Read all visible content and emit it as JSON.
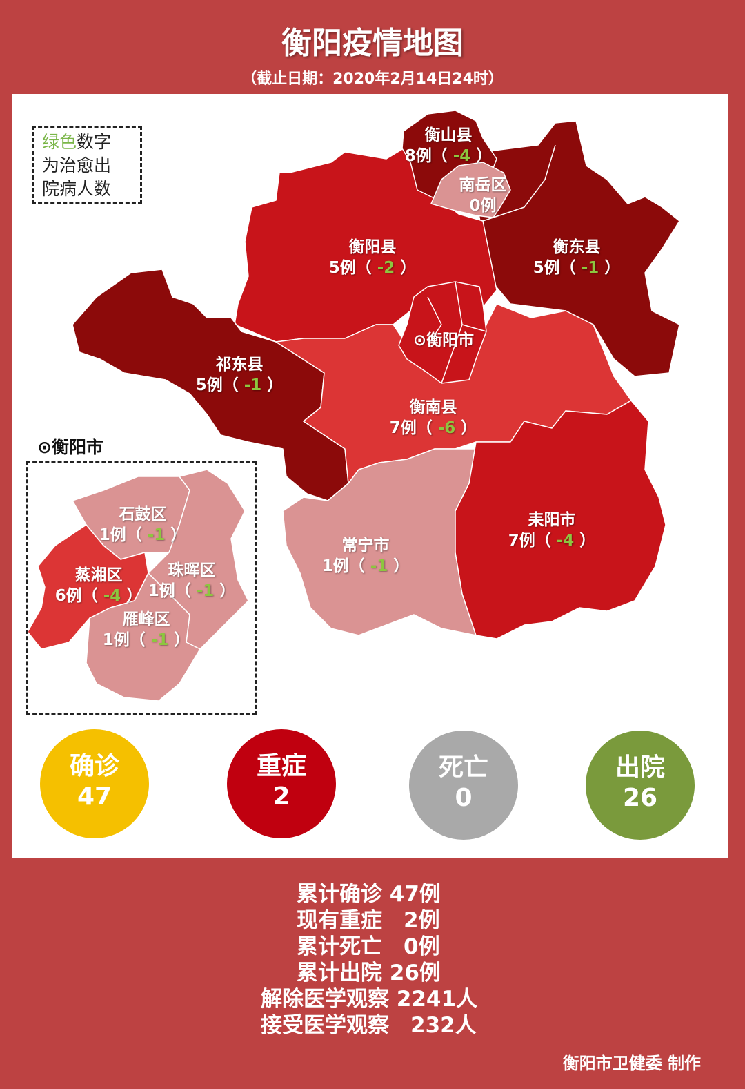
{
  "header": {
    "title": "衡阳疫情地图",
    "subtitle": "（截止日期：2020年2月14日24时）"
  },
  "legend": {
    "green_word": "绿色",
    "line1_rest": "数字",
    "line2": "为治愈出",
    "line3": "院病人数"
  },
  "labels": {
    "paren_open": "（ ",
    "paren_close": " ）",
    "city_marker": "⊙"
  },
  "colors": {
    "background": "#bd4242",
    "dark": "#8c0a0a",
    "red": "#c8141a",
    "medium": "#dc3535",
    "light": "#da9393",
    "recovered_text": "#8dc63f"
  },
  "regions": [
    {
      "name": "衡山县",
      "cases": "8例",
      "recovered": "-4"
    },
    {
      "name": "南岳区",
      "cases": "0例",
      "recovered": ""
    },
    {
      "name": "衡阳县",
      "cases": "5例",
      "recovered": "-2"
    },
    {
      "name": "衡东县",
      "cases": "5例",
      "recovered": "-1"
    },
    {
      "name": "衡阳市",
      "cases": "",
      "recovered": ""
    },
    {
      "name": "祁东县",
      "cases": "5例",
      "recovered": "-1"
    },
    {
      "name": "衡南县",
      "cases": "7例",
      "recovered": "-6"
    },
    {
      "name": "常宁市",
      "cases": "1例",
      "recovered": "-1"
    },
    {
      "name": "耒阳市",
      "cases": "7例",
      "recovered": "-4"
    }
  ],
  "inset": {
    "title": "衡阳市",
    "districts": [
      {
        "name": "石鼓区",
        "cases": "1例",
        "recovered": "-1"
      },
      {
        "name": "蒸湘区",
        "cases": "6例",
        "recovered": "-4"
      },
      {
        "name": "珠晖区",
        "cases": "1例",
        "recovered": "-1"
      },
      {
        "name": "雁峰区",
        "cases": "1例",
        "recovered": "-1"
      }
    ]
  },
  "summary_circles": [
    {
      "label": "确诊",
      "value": "47",
      "color": "#f5c000"
    },
    {
      "label": "重症",
      "value": "2",
      "color": "#c0000f"
    },
    {
      "label": "死亡",
      "value": "0",
      "color": "#a9a9a9"
    },
    {
      "label": "出院",
      "value": "26",
      "color": "#7a9a3c"
    }
  ],
  "stats": [
    "累计确诊 47例",
    "现有重症　2例",
    "累计死亡　0例",
    "累计出院 26例",
    "解除医学观察 2241人",
    "接受医学观察　232人"
  ],
  "credit": "衡阳市卫健委 制作"
}
